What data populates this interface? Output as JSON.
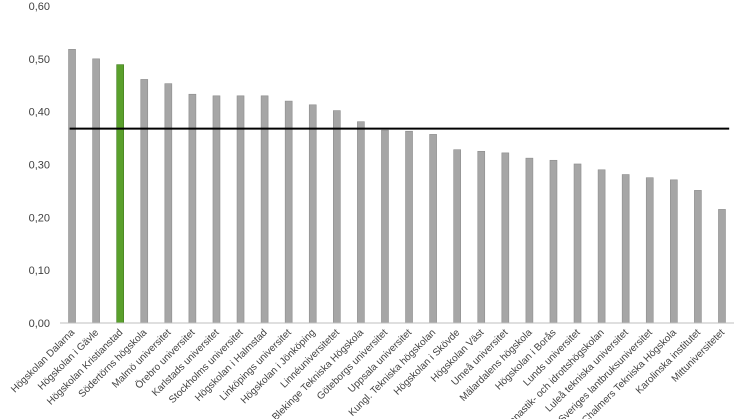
{
  "chart_data": {
    "type": "bar",
    "categories": [
      "Högskolan Dalarna",
      "Högskolan i Gävle",
      "Högskolan Kristianstad",
      "Södertörns högskola",
      "Malmö universitet",
      "Örebro universitet",
      "Karlstads universitet",
      "Stockholms universitet",
      "Högskolan i Halmstad",
      "Linköpings universitet",
      "Högskolan i Jönköping",
      "Linnéuniversitetet",
      "Blekinge Tekniska Högskola",
      "Göteborgs universitet",
      "Uppsala universitet",
      "Kungl. Tekniska högskolan",
      "Högskolan i Skövde",
      "Högskolan Väst",
      "Umeå universitet",
      "Mälardalens högskola",
      "Högskolan i Borås",
      "Lunds universitet",
      "Gymnastik- och idrottshögskolan",
      "Luleå tekniska universitet",
      "Sveriges lantbruksuniversitet",
      "Chalmers Tekniska Högskola",
      "Karolinska institutet",
      "Mittuniversitetet"
    ],
    "values": [
      0.518,
      0.5,
      0.489,
      0.461,
      0.453,
      0.433,
      0.43,
      0.43,
      0.43,
      0.42,
      0.413,
      0.402,
      0.381,
      0.365,
      0.363,
      0.357,
      0.328,
      0.325,
      0.322,
      0.312,
      0.308,
      0.301,
      0.29,
      0.281,
      0.275,
      0.271,
      0.251,
      0.215
    ],
    "highlight_index": 2,
    "reference_line": 0.368,
    "ylim": [
      0,
      0.6
    ],
    "yticks": [
      "0,00",
      "0,10",
      "0,20",
      "0,30",
      "0,40",
      "0,50",
      "0,60"
    ],
    "colors": {
      "bar": "#a6a6a6",
      "bar_edge": "#8c8c8c",
      "highlight": "#5aa02c",
      "highlight_edge": "#3f7a1c",
      "reference_line": "#000000",
      "axis": "#bfbfbf"
    },
    "grid": false,
    "legend": "none"
  }
}
